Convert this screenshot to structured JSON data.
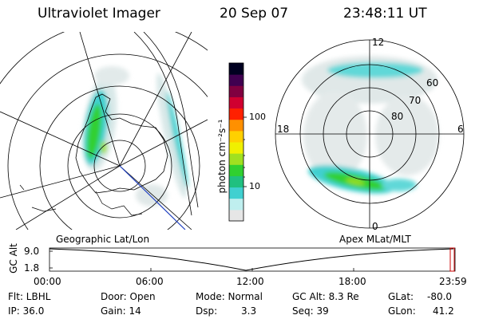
{
  "header": {
    "title": "Ultraviolet Imager",
    "date": "20 Sep 07",
    "time": "23:48:11 UT"
  },
  "left_panel": {
    "caption": "Geographic Lat/Lon"
  },
  "right_panel": {
    "caption": "Apex MLat/MLT",
    "mlt_labels": {
      "top": "12",
      "left": "18",
      "right": "6",
      "bottom": "0"
    },
    "lat_labels": [
      "60",
      "70",
      "80"
    ]
  },
  "colorbar": {
    "label": "photon cm⁻²s⁻¹",
    "ticks": [
      {
        "label": "100",
        "value": 100
      },
      {
        "label": "10",
        "value": 10
      }
    ],
    "colors": [
      "#e6e6e6",
      "#bfefef",
      "#40d0d0",
      "#20c080",
      "#30d030",
      "#a0e020",
      "#f0f000",
      "#ffd000",
      "#ff9000",
      "#ff2000",
      "#d00030",
      "#800040",
      "#400050",
      "#000020"
    ]
  },
  "altitude_plot": {
    "axis_label": "GC Alt",
    "y_ticks": [
      "9.0",
      "1.8"
    ],
    "x_ticks": [
      "00:00",
      "06:00",
      "12:00",
      "18:00",
      "23:59"
    ],
    "trace_color": "#000000",
    "marker_color": "#cc0000"
  },
  "info": {
    "flt": "Flt: LBHL",
    "ip": "IP: 36.0",
    "door": "Door: Open",
    "gain": "Gain: 14",
    "mode": "Mode: Normal",
    "dsp_label": "Dsp:",
    "dsp_value": "3.3",
    "gc_alt": "GC Alt: 8.3 Re",
    "seq": "Seq: 39",
    "glat_label": "GLat:",
    "glat_value": "-80.0",
    "glon_label": "GLon:",
    "glon_value": "41.2"
  }
}
